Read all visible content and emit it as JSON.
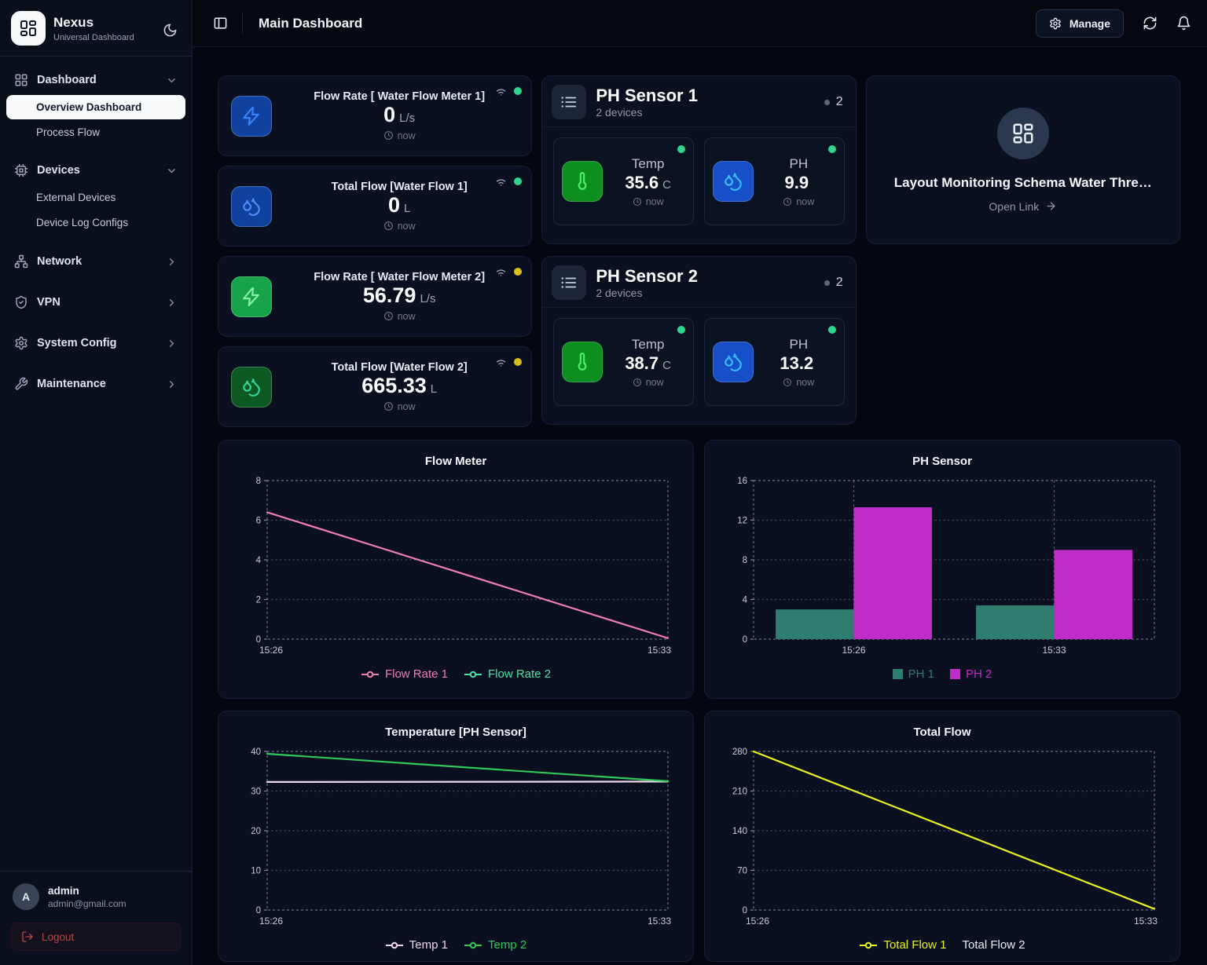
{
  "app": {
    "name": "Nexus",
    "subtitle": "Universal Dashboard"
  },
  "topbar": {
    "title": "Main Dashboard",
    "manage_label": "Manage"
  },
  "sidebar": {
    "dashboard": {
      "label": "Dashboard",
      "items": [
        {
          "label": "Overview Dashboard"
        },
        {
          "label": "Process Flow"
        }
      ]
    },
    "devices": {
      "label": "Devices",
      "items": [
        {
          "label": "External Devices"
        },
        {
          "label": "Device Log Configs"
        }
      ]
    },
    "links": [
      {
        "label": "Network"
      },
      {
        "label": "VPN"
      },
      {
        "label": "System Config"
      },
      {
        "label": "Maintenance"
      }
    ],
    "user": {
      "initial": "A",
      "name": "admin",
      "email": "admin@gmail.com",
      "logout_label": "Logout"
    }
  },
  "stat_cards": [
    {
      "title": "Flow Rate [ Water Flow Meter 1]",
      "value": "0",
      "unit": "L/s",
      "timestamp": "now",
      "status_color": "#2fd58a",
      "icon_bg": "#11419f",
      "icon_color": "#3b82f6"
    },
    {
      "title": "Total Flow [Water Flow 1]",
      "value": "0",
      "unit": "L",
      "timestamp": "now",
      "status_color": "#2fd58a",
      "icon_bg": "#11419f",
      "icon_color": "#4f8ef7"
    },
    {
      "title": "Flow Rate [ Water Flow Meter 2]",
      "value": "56.79",
      "unit": "L/s",
      "timestamp": "now",
      "status_color": "#d8c018",
      "icon_bg": "#16a34a",
      "icon_color": "#86efac"
    },
    {
      "title": "Total Flow [Water Flow 2]",
      "value": "665.33",
      "unit": "L",
      "timestamp": "now",
      "status_color": "#d8c018",
      "icon_bg": "#0c5a22",
      "icon_color": "#34d399"
    }
  ],
  "group_cards": [
    {
      "title": "PH Sensor 1",
      "subtitle": "2 devices",
      "count": "2",
      "devices": [
        {
          "label": "Temp",
          "value": "35.6",
          "unit": "C",
          "timestamp": "now",
          "status_color": "#2fd58a",
          "icon_bg": "#0c8f1f",
          "icon_color": "#49f06a"
        },
        {
          "label": "PH",
          "value": "9.9",
          "unit": "",
          "timestamp": "now",
          "status_color": "#2fd58a",
          "icon_bg": "#164fc8",
          "icon_color": "#38bdf8"
        }
      ]
    },
    {
      "title": "PH Sensor 2",
      "subtitle": "2 devices",
      "count": "2",
      "devices": [
        {
          "label": "Temp",
          "value": "38.7",
          "unit": "C",
          "timestamp": "now",
          "status_color": "#2fd58a",
          "icon_bg": "#0c8f1f",
          "icon_color": "#49f06a"
        },
        {
          "label": "PH",
          "value": "13.2",
          "unit": "",
          "timestamp": "now",
          "status_color": "#2fd58a",
          "icon_bg": "#164fc8",
          "icon_color": "#38bdf8"
        }
      ]
    }
  ],
  "link_card": {
    "title": "Layout Monitoring Schema Water Thre…",
    "action_label": "Open Link"
  },
  "chart_data": [
    {
      "type": "line",
      "title": "Flow Meter",
      "x": [
        "15:26",
        "15:33"
      ],
      "ylim": [
        0,
        8
      ],
      "yticks": [
        0,
        2,
        4,
        6,
        8
      ],
      "grid": true,
      "legend_position": "bottom",
      "series": [
        {
          "name": "Flow Rate 1",
          "color": "#ef7fb1",
          "values": [
            6.4,
            0.05
          ]
        },
        {
          "name": "Flow Rate 2",
          "color": "#4be0a7",
          "values": []
        }
      ]
    },
    {
      "type": "bar",
      "title": "PH Sensor",
      "categories": [
        "15:26",
        "15:33"
      ],
      "ylim": [
        0,
        16
      ],
      "yticks": [
        0,
        4,
        8,
        12,
        16
      ],
      "grid": true,
      "legend_position": "bottom",
      "series": [
        {
          "name": "PH 1",
          "color": "#2e7d6e",
          "values": [
            3.0,
            3.4
          ]
        },
        {
          "name": "PH 2",
          "color": "#c02cc8",
          "values": [
            13.3,
            9.0
          ]
        }
      ]
    },
    {
      "type": "line",
      "title": "Temperature [PH Sensor]",
      "x": [
        "15:26",
        "15:33"
      ],
      "ylim": [
        0,
        40
      ],
      "yticks": [
        0,
        10,
        20,
        30,
        40
      ],
      "grid": true,
      "legend_position": "bottom",
      "series": [
        {
          "name": "Temp 1",
          "color": "#eed9ec",
          "values": [
            32.3,
            32.4
          ]
        },
        {
          "name": "Temp 2",
          "color": "#2fc95b",
          "values": [
            39.4,
            32.5
          ]
        }
      ]
    },
    {
      "type": "line",
      "title": "Total Flow",
      "x": [
        "15:26",
        "15:33"
      ],
      "ylim": [
        0,
        280
      ],
      "yticks": [
        0,
        70,
        140,
        210,
        280
      ],
      "grid": true,
      "legend_position": "bottom",
      "series": [
        {
          "name": "Total Flow 1",
          "color": "#e9f21d",
          "values": [
            280,
            2
          ]
        },
        {
          "name": "Total Flow 2",
          "color": "#e8edf4",
          "values": [],
          "legend_marker": false
        }
      ]
    }
  ]
}
